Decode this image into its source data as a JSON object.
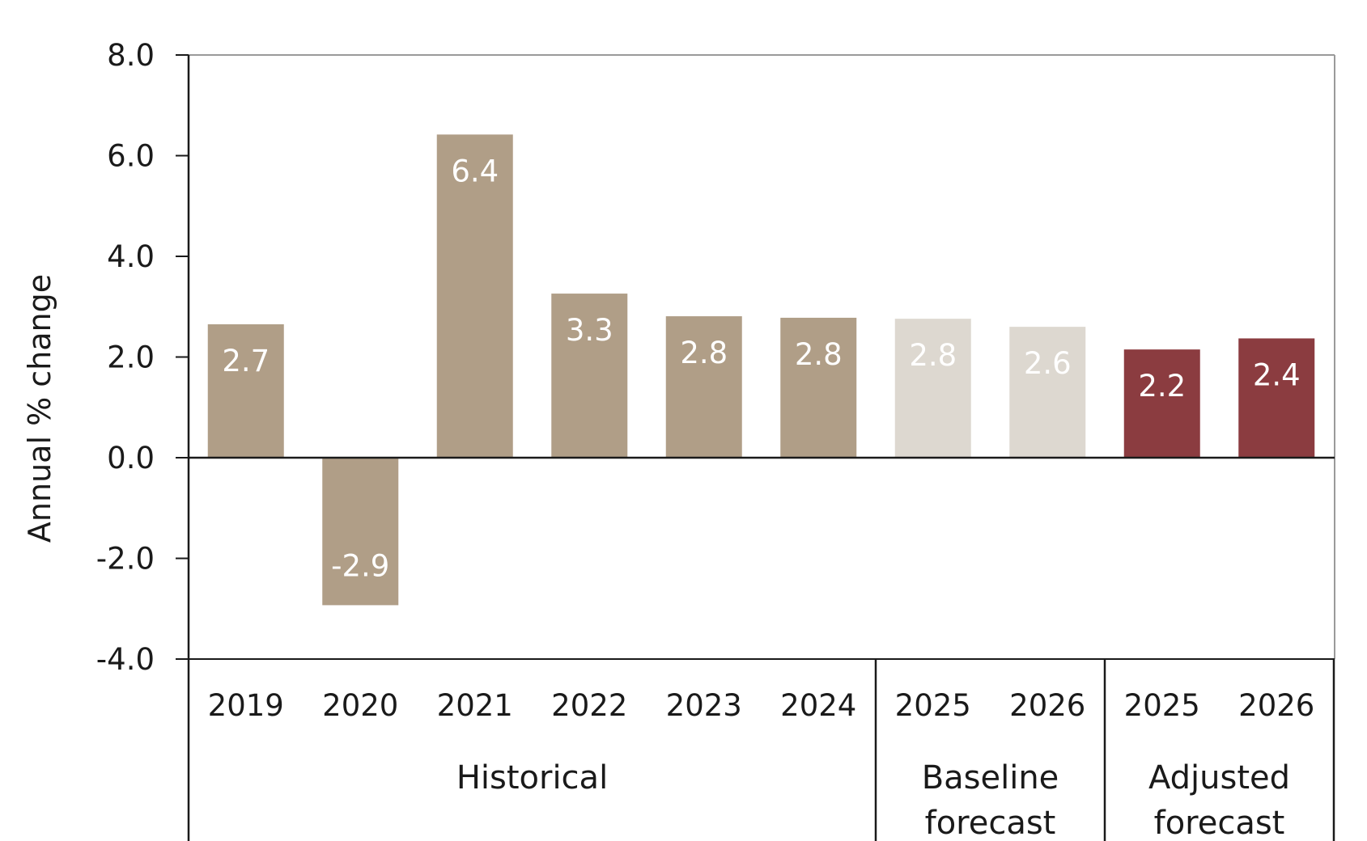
{
  "chart_data": {
    "type": "bar",
    "ylabel": "Annual % change",
    "ylim": [
      -4.0,
      8.0
    ],
    "yticks": [
      "8.0",
      "6.0",
      "4.0",
      "2.0",
      "0.0",
      "-2.0",
      "-4.0"
    ],
    "ytick_values": [
      8,
      6,
      4,
      2,
      0,
      -2,
      -4
    ],
    "categories": [
      "2019",
      "2020",
      "2021",
      "2022",
      "2023",
      "2024",
      "2025",
      "2026",
      "2025",
      "2026"
    ],
    "values": [
      2.65,
      -2.93,
      6.42,
      3.26,
      2.81,
      2.78,
      2.76,
      2.6,
      2.15,
      2.37
    ],
    "data_labels": [
      "2.7",
      "-2.9",
      "6.4",
      "3.3",
      "2.8",
      "2.8",
      "2.8",
      "2.6",
      "2.2",
      "2.4"
    ],
    "bar_groups": [
      "Historical",
      "Historical",
      "Historical",
      "Historical",
      "Historical",
      "Historical",
      "Baseline forecast",
      "Baseline forecast",
      "Adjusted forecast",
      "Adjusted forecast"
    ],
    "groups": [
      {
        "name": "Historical",
        "lines": [
          "Historical"
        ],
        "count": 6,
        "color": "#b09e87"
      },
      {
        "name": "Baseline forecast",
        "lines": [
          "Baseline",
          "forecast"
        ],
        "count": 2,
        "color": "#ddd8d0"
      },
      {
        "name": "Adjusted forecast",
        "lines": [
          "Adjusted",
          "forecast"
        ],
        "count": 2,
        "color": "#8b3c40"
      }
    ],
    "grid": false
  }
}
